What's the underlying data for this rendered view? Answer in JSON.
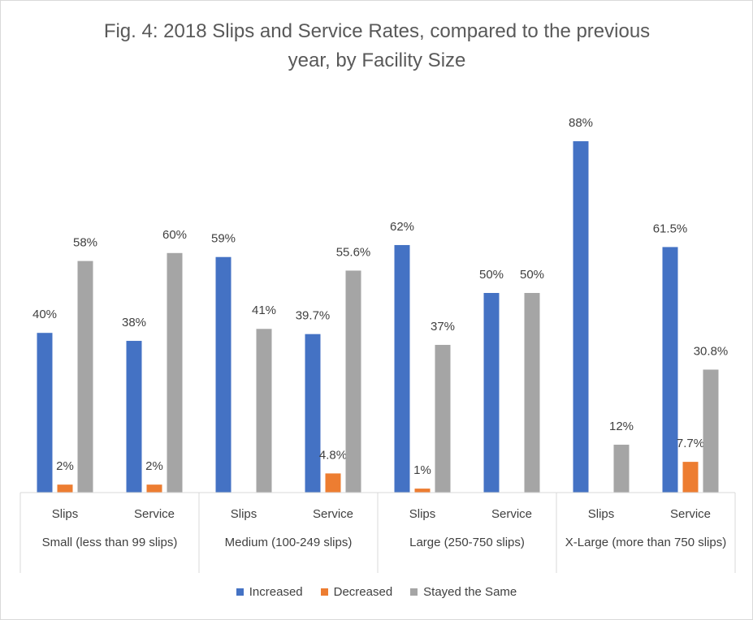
{
  "chart_data": {
    "type": "bar",
    "title": "Fig. 4: 2018 Slips and Service Rates, compared to the previous year, by Facility Size",
    "categories": [
      "Slips",
      "Service",
      "Slips",
      "Service",
      "Slips",
      "Service",
      "Slips",
      "Service"
    ],
    "groups": [
      "Small (less than 99 slips)",
      "Medium (100-249 slips)",
      "Large (250-750 slips)",
      "X-Large (more than 750 slips)"
    ],
    "ylim": [
      0,
      100
    ],
    "series": [
      {
        "name": "Increased",
        "color": "#4472c4",
        "values": [
          40,
          38,
          59,
          39.7,
          62,
          50,
          88,
          61.5
        ],
        "value_labels": [
          "40%",
          "38%",
          "59%",
          "39.7%",
          "62%",
          "50%",
          "88%",
          "61.5%"
        ]
      },
      {
        "name": "Decreased",
        "color": "#ed7d31",
        "values": [
          2,
          2,
          null,
          4.8,
          1,
          null,
          null,
          7.7
        ],
        "value_labels": [
          "2%",
          "2%",
          null,
          "4.8%",
          "1%",
          null,
          null,
          "7.7%"
        ]
      },
      {
        "name": "Stayed the Same",
        "color": "#a5a5a5",
        "values": [
          58,
          60,
          41,
          55.6,
          37,
          50,
          12,
          30.8
        ],
        "value_labels": [
          "58%",
          "60%",
          "41%",
          "55.6%",
          "37%",
          "50%",
          "12%",
          "30.8%"
        ]
      }
    ]
  }
}
